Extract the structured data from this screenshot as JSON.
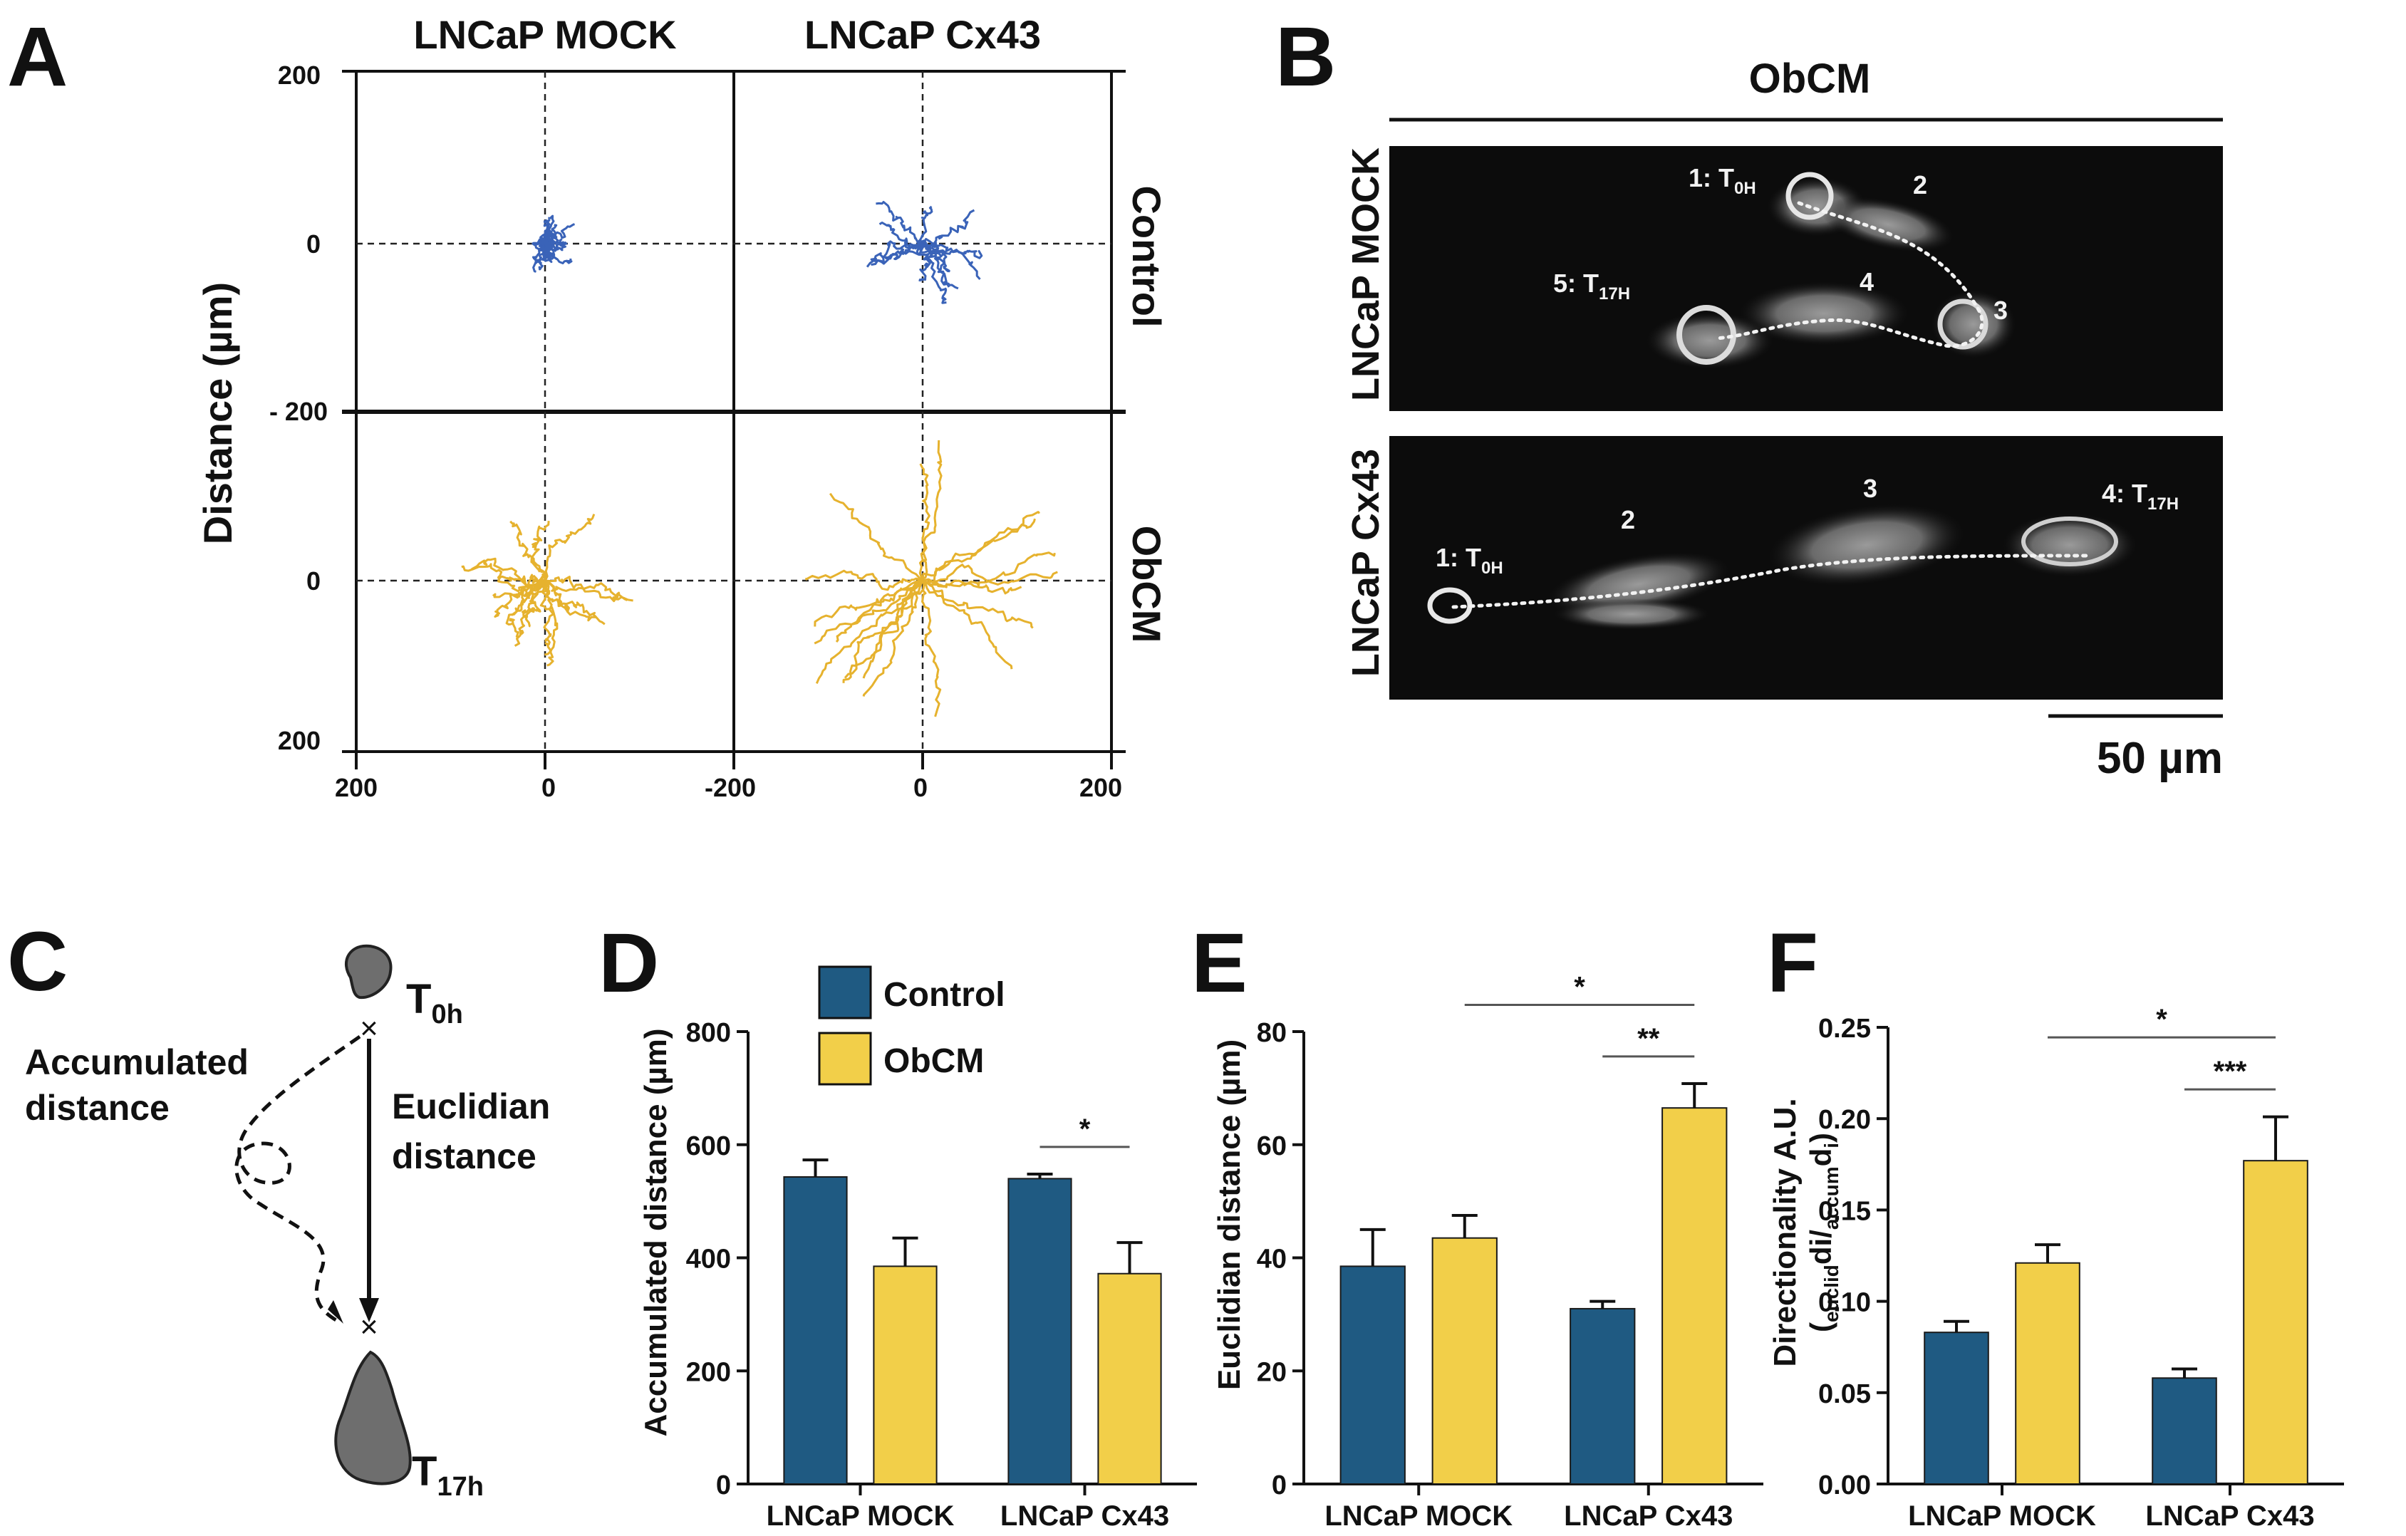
{
  "panels": {
    "a": "A",
    "b": "B",
    "c": "C",
    "d": "D",
    "e": "E",
    "f": "F"
  },
  "colors": {
    "control": "#1f5a82",
    "obcm": "#f2cf49",
    "track_control": "#3a63b8",
    "track_obcm": "#e6b22e",
    "ink": "#111111"
  },
  "panel_a": {
    "col_titles": [
      "LNCaP MOCK",
      "LNCaP Cx43"
    ],
    "row_titles": [
      "Control",
      "ObCM"
    ],
    "ylabel": "Distance (µm)",
    "y_ticks": [
      "200",
      "0",
      "- 200",
      "0",
      "200"
    ],
    "x_ticks": [
      "200",
      "0",
      "-200",
      "0",
      "200"
    ]
  },
  "panel_b": {
    "title": "ObCM",
    "rows": [
      "LNCaP MOCK",
      "LNCaP Cx43"
    ],
    "mock_labels": [
      "1: T",
      "0H",
      "2",
      "3",
      "4",
      "5: T",
      "17H"
    ],
    "cx43_labels": [
      "1: T",
      "0H",
      "2",
      "3",
      "4: T",
      "17H"
    ],
    "scalebar": "50 µm"
  },
  "panel_c": {
    "start": "T",
    "start_sub": "0h",
    "end": "T",
    "end_sub": "17h",
    "accumulated": [
      "Accumulated",
      "distance"
    ],
    "euclidian": [
      "Euclidian",
      "distance"
    ]
  },
  "legend": [
    "Control",
    "ObCM"
  ],
  "chart_data": [
    {
      "type": "bar",
      "panel": "D",
      "categories": [
        "LNCaP MOCK",
        "LNCaP Cx43"
      ],
      "series": [
        {
          "name": "Control",
          "values": [
            543,
            540
          ],
          "errors": [
            30,
            8
          ]
        },
        {
          "name": "ObCM",
          "values": [
            385,
            372
          ],
          "errors": [
            50,
            55
          ]
        }
      ],
      "ylabel": "Accumulated distance (µm)",
      "ylim": [
        0,
        800
      ],
      "yticks": [
        "0",
        "200",
        "400",
        "600",
        "800"
      ],
      "significance": [
        {
          "label": "*",
          "scope": "within LNCaP Cx43"
        }
      ]
    },
    {
      "type": "bar",
      "panel": "E",
      "categories": [
        "LNCaP MOCK",
        "LNCaP Cx43"
      ],
      "series": [
        {
          "name": "Control",
          "values": [
            38.5,
            31
          ],
          "errors": [
            6.5,
            1.3
          ]
        },
        {
          "name": "ObCM",
          "values": [
            43.5,
            66.5
          ],
          "errors": [
            4,
            4.3
          ]
        }
      ],
      "ylabel": "Euclidian distance (µm)",
      "ylim": [
        0,
        80
      ],
      "yticks": [
        "0",
        "20",
        "40",
        "60",
        "80"
      ],
      "significance": [
        {
          "label": "*",
          "scope": "ObCM MOCK vs ObCM Cx43"
        },
        {
          "label": "**",
          "scope": "within LNCaP Cx43"
        }
      ]
    },
    {
      "type": "bar",
      "panel": "F",
      "categories": [
        "LNCaP MOCK",
        "LNCaP Cx43"
      ],
      "series": [
        {
          "name": "Control",
          "values": [
            0.083,
            0.058
          ],
          "errors": [
            0.006,
            0.005
          ]
        },
        {
          "name": "ObCM",
          "values": [
            0.121,
            0.177
          ],
          "errors": [
            0.01,
            0.024
          ]
        }
      ],
      "ylabel": "Directionality A.U.",
      "ylabel_formula": {
        "open": "(",
        "sub1": "euclid",
        "mid": "di/",
        "sub2": "accum",
        "d": "d",
        "sub3": "i",
        "close": ")"
      },
      "ylim": [
        0,
        0.25
      ],
      "yticks": [
        "0.00",
        "0.05",
        "0.10",
        "0.15",
        "0.20",
        "0.25"
      ],
      "significance": [
        {
          "label": "*",
          "scope": "ObCM MOCK vs ObCM Cx43"
        },
        {
          "label": "***",
          "scope": "within LNCaP Cx43"
        }
      ]
    }
  ]
}
